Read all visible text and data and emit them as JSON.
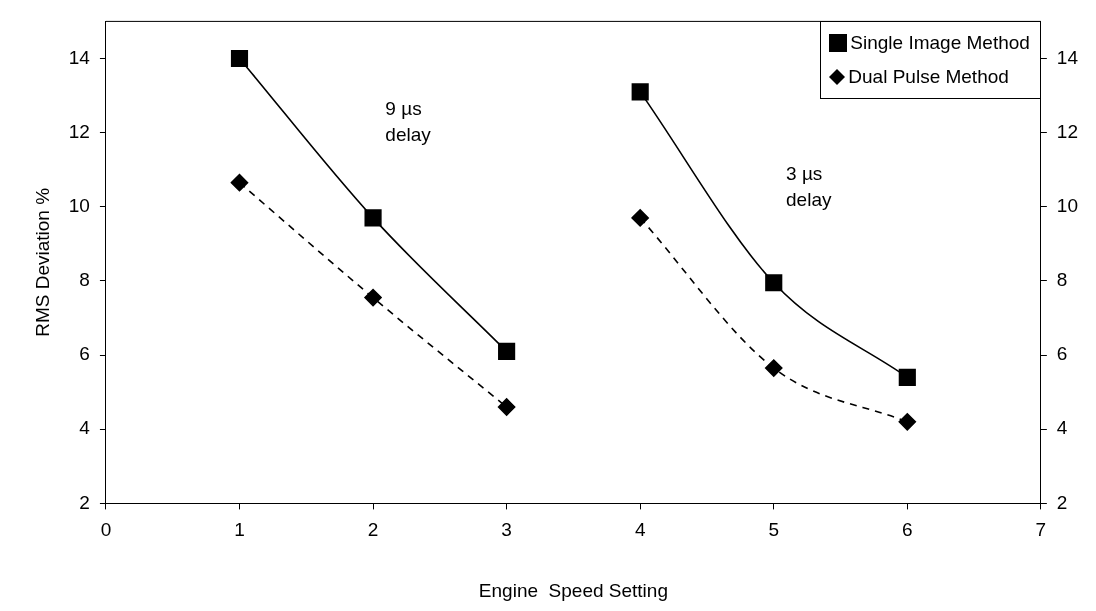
{
  "chart_data": {
    "type": "line",
    "xlabel": "Engine  Speed Setting",
    "ylabel": "RMS Deviation %",
    "xlim": [
      0,
      7
    ],
    "xticks": [
      0,
      1,
      2,
      3,
      4,
      5,
      6,
      7
    ],
    "ylim": [
      2,
      15
    ],
    "yticks": [
      2,
      4,
      6,
      8,
      10,
      12,
      14
    ],
    "y2lim": [
      2,
      15
    ],
    "y2ticks": [
      2,
      4,
      6,
      8,
      10,
      12,
      14
    ],
    "grid": false,
    "legend": "top right",
    "series": [
      {
        "name": "Single Image Method",
        "color": "#000000",
        "marker": "square",
        "line_style": "solid",
        "x": [
          1,
          2,
          3
        ],
        "values": [
          14.0,
          9.7,
          6.1
        ]
      },
      {
        "color": "#000000",
        "marker": "square",
        "line_style": "solid",
        "x": [
          4,
          5,
          6
        ],
        "values": [
          13.1,
          7.95,
          5.4
        ]
      },
      {
        "name": "Dual Pulse Method",
        "color": "#000000",
        "marker": "diamond",
        "line_style": "dashed",
        "x": [
          1,
          2,
          3
        ],
        "values": [
          10.65,
          7.55,
          4.6
        ]
      },
      {
        "color": "#000000",
        "marker": "diamond",
        "line_style": "dashed",
        "x": [
          4,
          5,
          6
        ],
        "values": [
          9.7,
          5.65,
          4.2
        ]
      }
    ],
    "annotations": [
      "9 µs delay",
      "3 µs delay"
    ]
  }
}
